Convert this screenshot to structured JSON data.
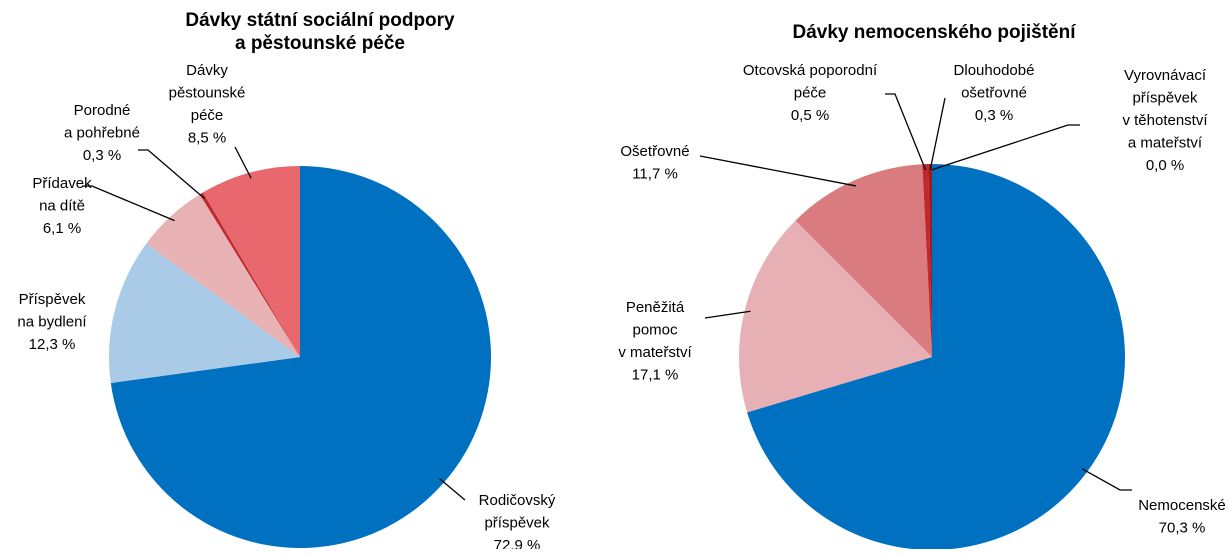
{
  "chart_data": [
    {
      "type": "pie",
      "title": "Dávky státní sociální podpory\na pěstounské péče",
      "categories": [
        "Rodičovský\npříspěvek",
        "Příspěvek\nna bydlení",
        "Přídavek\nna dítě",
        "Porodné\na pohřebné",
        "Dávky\npěstounské\npéče"
      ],
      "values": [
        72.9,
        12.3,
        6.1,
        0.3,
        8.5
      ],
      "value_labels": [
        "72,9 %",
        "12,3 %",
        "6,1 %",
        "0,3 %",
        "8,5 %"
      ],
      "colors": [
        "#0070c0",
        "#a9cbe8",
        "#e8b1b4",
        "#c0282d",
        "#e8686e"
      ]
    },
    {
      "type": "pie",
      "title": "Dávky nemocenského pojištění",
      "categories": [
        "Nemocenské",
        "Peněžitá\npomoc\nv mateřství",
        "Ošetřovné",
        "Otcovská poporodní\npéče",
        "Dlouhodobé\nošetřovné",
        "Vyrovnávací\npříspěvek\nv těhotenství\na mateřství"
      ],
      "values": [
        70.3,
        17.1,
        11.7,
        0.5,
        0.3,
        0.0
      ],
      "value_labels": [
        "70,3 %",
        "17,1 %",
        "11,7 %",
        "0,5 %",
        "0,3 %",
        "0,0 %"
      ],
      "colors": [
        "#0070c0",
        "#e6b0b4",
        "#d97b7f",
        "#c0282d",
        "#9e1c20",
        "#e8686e"
      ]
    }
  ]
}
